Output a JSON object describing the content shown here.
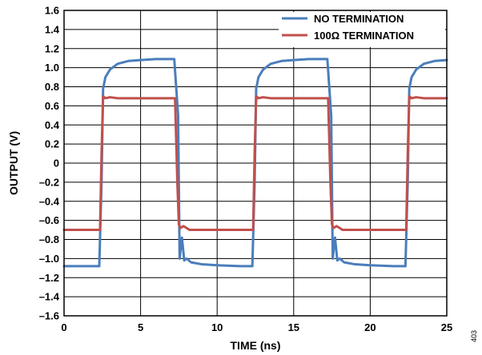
{
  "chart_data": {
    "type": "line",
    "xlabel": "TIME (ns)",
    "ylabel": "OUTPUT (V)",
    "xlim": [
      0,
      25
    ],
    "ylim": [
      -1.6,
      1.6
    ],
    "xticks": [
      "0",
      "5",
      "10",
      "15",
      "20",
      "25"
    ],
    "yticks": [
      "1.6",
      "1.4",
      "1.2",
      "1.0",
      "0.8",
      "0.6",
      "0.4",
      "0.2",
      "0",
      "–0.2",
      "–0.4",
      "–0.6",
      "–0.8",
      "–1.0",
      "–1.2",
      "–1.4",
      "–1.6"
    ],
    "grid": true,
    "legend": "top-right",
    "figure_id": "403",
    "series": [
      {
        "name": "NO TERMINATION",
        "color": "#4a7ebb",
        "x": [
          0,
          2.3,
          2.45,
          2.55,
          2.7,
          3.0,
          3.5,
          4.2,
          5.0,
          6.0,
          7.2,
          7.45,
          7.55,
          7.7,
          7.85,
          8.0,
          8.3,
          9.0,
          10.0,
          11.5,
          12.3,
          12.45,
          12.55,
          12.7,
          13.0,
          13.5,
          14.2,
          15.0,
          16.0,
          17.2,
          17.45,
          17.55,
          17.7,
          17.85,
          18.0,
          18.3,
          19.0,
          20.0,
          21.5,
          22.3,
          22.45,
          22.55,
          22.7,
          23.0,
          23.5,
          24.2,
          25.0
        ],
        "y": [
          -1.08,
          -1.08,
          -0.2,
          0.78,
          0.9,
          0.98,
          1.04,
          1.07,
          1.08,
          1.09,
          1.09,
          0.5,
          -1.0,
          -0.78,
          -1.02,
          -1.0,
          -1.04,
          -1.06,
          -1.07,
          -1.08,
          -1.08,
          -0.2,
          0.78,
          0.9,
          0.98,
          1.04,
          1.07,
          1.08,
          1.09,
          1.09,
          0.5,
          -1.0,
          -0.78,
          -1.02,
          -1.0,
          -1.04,
          -1.06,
          -1.07,
          -1.08,
          -1.08,
          -0.2,
          0.78,
          0.9,
          0.98,
          1.04,
          1.07,
          1.08
        ]
      },
      {
        "name": "100Ω TERMINATION",
        "color": "#c0504d",
        "x": [
          0,
          2.35,
          2.45,
          2.55,
          2.7,
          3.0,
          3.5,
          5.0,
          7.0,
          7.25,
          7.4,
          7.5,
          7.6,
          7.8,
          8.2,
          10.0,
          12.3,
          12.35,
          12.45,
          12.55,
          12.7,
          13.0,
          13.5,
          15.0,
          17.0,
          17.25,
          17.4,
          17.5,
          17.6,
          17.8,
          18.2,
          20.0,
          22.3,
          22.35,
          22.45,
          22.55,
          22.7,
          23.0,
          23.5,
          25.0
        ],
        "y": [
          -0.7,
          -0.7,
          0.1,
          0.7,
          0.68,
          0.69,
          0.68,
          0.68,
          0.68,
          0.68,
          -0.2,
          -0.64,
          -0.68,
          -0.66,
          -0.7,
          -0.7,
          -0.7,
          -0.7,
          0.1,
          0.7,
          0.68,
          0.69,
          0.68,
          0.68,
          0.68,
          0.68,
          -0.2,
          -0.64,
          -0.68,
          -0.66,
          -0.7,
          -0.7,
          -0.7,
          -0.7,
          0.1,
          0.7,
          0.68,
          0.69,
          0.68,
          0.68
        ]
      }
    ]
  }
}
